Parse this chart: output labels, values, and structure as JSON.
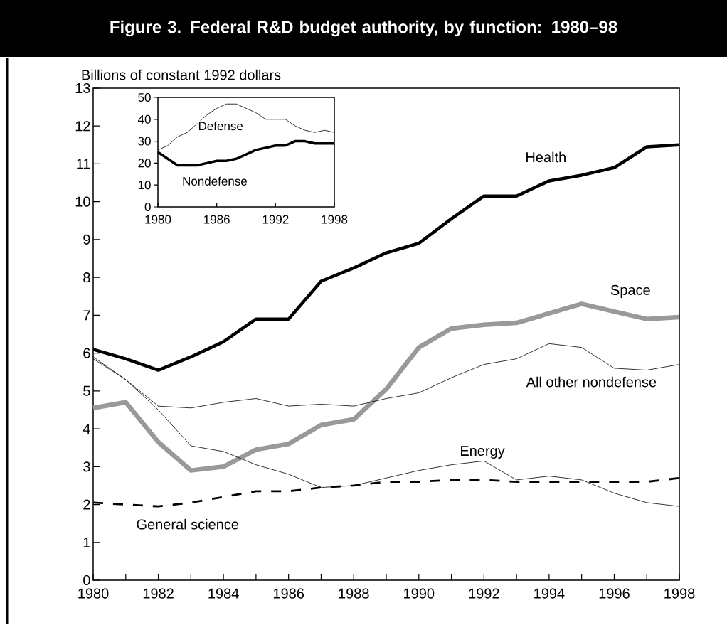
{
  "chart_data": [
    {
      "type": "line",
      "title": "Figure 3. Federal R&D budget authority, by function: 1980–98",
      "ylabel": "Billions of constant 1992 dollars",
      "x": [
        1980,
        1981,
        1982,
        1983,
        1984,
        1985,
        1986,
        1987,
        1988,
        1989,
        1990,
        1991,
        1992,
        1993,
        1994,
        1995,
        1996,
        1997,
        1998
      ],
      "xlim": [
        1980,
        1998
      ],
      "ylim": [
        0,
        13
      ],
      "xticks": [
        1980,
        {
          "value": 1981,
          "label": null
        },
        1982,
        {
          "value": 1983,
          "label": null
        },
        1984,
        {
          "value": 1985,
          "label": null
        },
        1986,
        {
          "value": 1987,
          "label": null
        },
        1988,
        {
          "value": 1989,
          "label": null
        },
        1990,
        {
          "value": 1991,
          "label": null
        },
        1992,
        {
          "value": 1993,
          "label": null
        },
        1994,
        {
          "value": 1995,
          "label": null
        },
        1996,
        {
          "value": 1997,
          "label": null
        },
        1998
      ],
      "yticks": [
        0,
        1,
        2,
        3,
        4,
        5,
        6,
        7,
        8,
        9,
        10,
        11,
        12,
        13
      ],
      "series": [
        {
          "name": "Health",
          "color": "#000000",
          "values": [
            6.1,
            5.85,
            5.55,
            5.9,
            6.3,
            6.9,
            6.9,
            7.9,
            8.25,
            8.65,
            8.9,
            9.55,
            10.15,
            10.15,
            10.55,
            10.7,
            10.9,
            11.45,
            11.5
          ]
        },
        {
          "name": "Space",
          "color": "#999999",
          "values": [
            4.55,
            4.7,
            3.65,
            2.9,
            3.0,
            3.45,
            3.6,
            4.1,
            4.25,
            5.05,
            6.15,
            6.65,
            6.75,
            6.8,
            7.05,
            7.3,
            7.1,
            6.9,
            6.95
          ]
        },
        {
          "name": "All other nondefense",
          "color": "#000000",
          "values": [
            5.85,
            5.3,
            4.6,
            4.55,
            4.7,
            4.8,
            4.6,
            4.65,
            4.6,
            4.8,
            4.95,
            5.35,
            5.7,
            5.85,
            6.25,
            6.15,
            5.6,
            5.55,
            5.7
          ]
        },
        {
          "name": "Energy",
          "color": "#000000",
          "values": [
            5.9,
            5.3,
            4.5,
            3.55,
            3.4,
            3.05,
            2.8,
            2.45,
            2.5,
            2.7,
            2.9,
            3.05,
            3.15,
            2.65,
            2.75,
            2.65,
            2.3,
            2.05,
            1.95
          ]
        },
        {
          "name": "General science",
          "color": "#000000",
          "line_style": "dashed",
          "values": [
            2.05,
            2.0,
            1.95,
            2.05,
            2.2,
            2.35,
            2.35,
            2.45,
            2.5,
            2.6,
            2.6,
            2.65,
            2.65,
            2.6,
            2.6,
            2.6,
            2.6,
            2.6,
            2.7
          ]
        }
      ]
    },
    {
      "type": "line",
      "x": [
        1980,
        1981,
        1982,
        1983,
        1984,
        1985,
        1986,
        1987,
        1988,
        1989,
        1990,
        1991,
        1992,
        1993,
        1994,
        1995,
        1996,
        1997,
        1998
      ],
      "xlim": [
        1980,
        1998
      ],
      "ylim": [
        0,
        50
      ],
      "xticks": [
        1980,
        1986,
        1992,
        1998
      ],
      "yticks": [
        0,
        10,
        20,
        30,
        40,
        50
      ],
      "series": [
        {
          "name": "Defense",
          "color": "#000000",
          "values": [
            26,
            28,
            32,
            34,
            38,
            42,
            45,
            47,
            47,
            45,
            43,
            40,
            40,
            40,
            37,
            35,
            34,
            35,
            34
          ]
        },
        {
          "name": "Nondefense",
          "color": "#000000",
          "values": [
            25,
            22,
            19,
            19,
            19,
            20,
            21,
            21,
            22,
            24,
            26,
            27,
            28,
            28,
            30,
            30,
            29,
            29,
            29
          ]
        }
      ]
    }
  ]
}
